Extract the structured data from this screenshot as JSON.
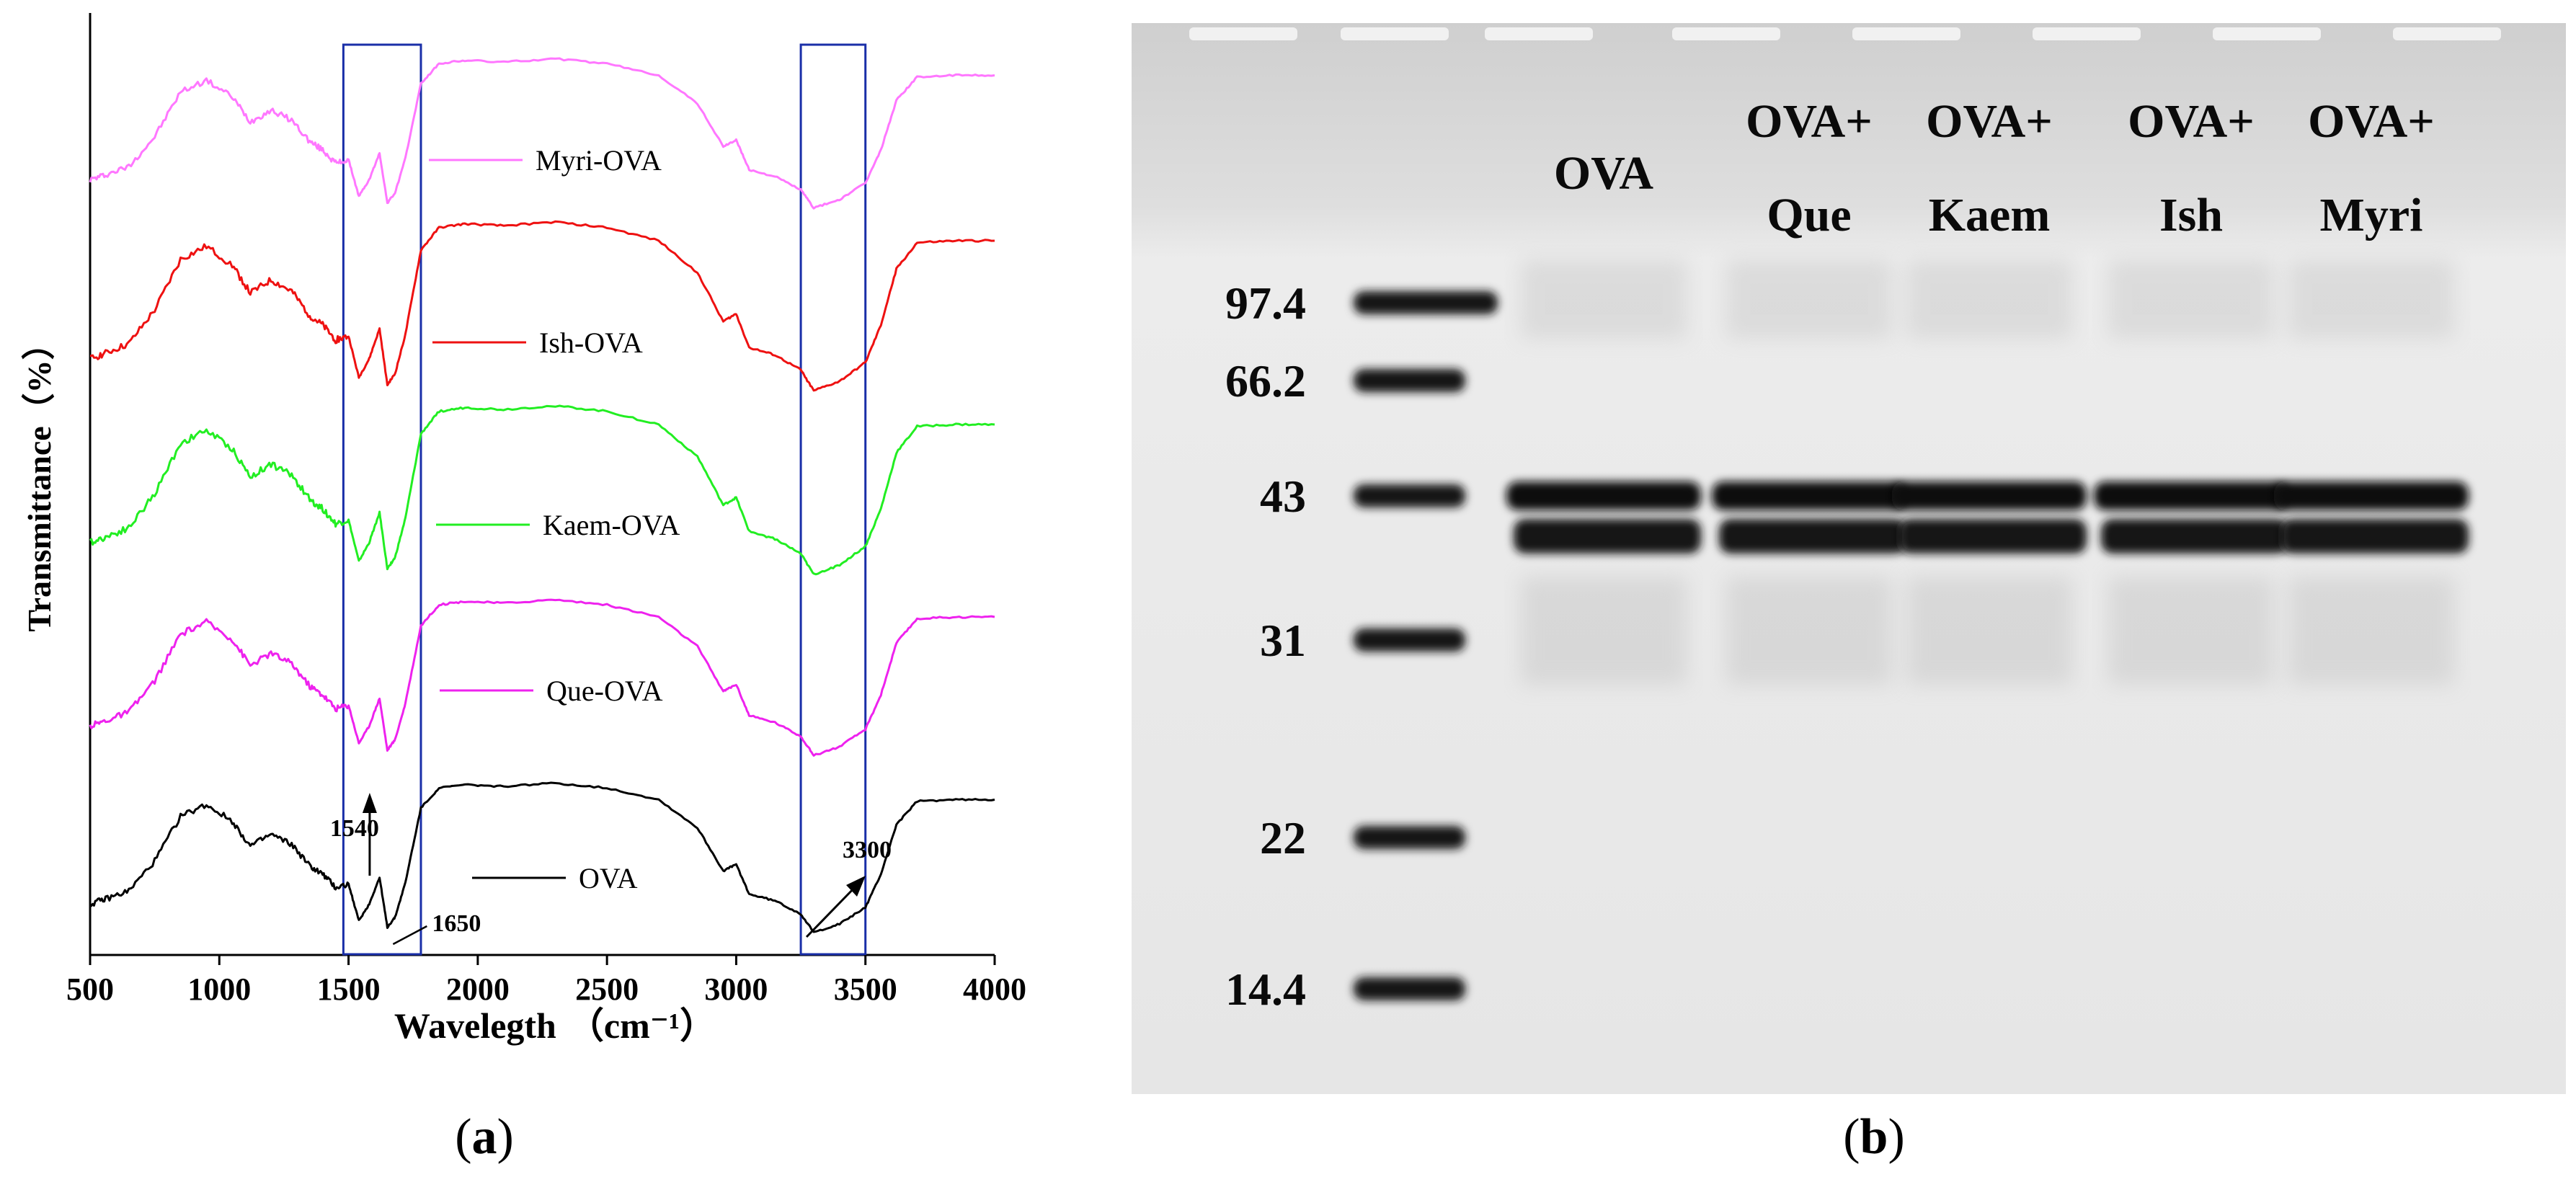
{
  "chart_data": [
    {
      "type": "line",
      "panel_label": "a",
      "xlabel": "Wavelegth",
      "xlabel_unit": "（cm⁻¹）",
      "ylabel": "Transmittance（%）",
      "xlim": [
        500,
        4000
      ],
      "xticks": [
        500,
        1000,
        1500,
        2000,
        2500,
        3000,
        3500,
        4000
      ],
      "highlight_boxes": [
        {
          "x": [
            1480,
            1780
          ]
        },
        {
          "x": [
            3250,
            3500
          ]
        }
      ],
      "annotations": [
        {
          "text": "1540",
          "x": 1540
        },
        {
          "text": "1650",
          "x": 1650
        },
        {
          "text": "3300",
          "x": 3300
        }
      ],
      "series": [
        {
          "name": "Myri-OVA",
          "color": "#ff77ff",
          "offset": 4
        },
        {
          "name": "Ish-OVA",
          "color": "#ee1111",
          "offset": 3
        },
        {
          "name": "Kaem-OVA",
          "color": "#22ee22",
          "offset": 2
        },
        {
          "name": "Que-OVA",
          "color": "#ee22ee",
          "offset": 1
        },
        {
          "name": "OVA",
          "color": "#000000",
          "offset": 0
        }
      ],
      "profile": {
        "x": [
          500,
          560,
          650,
          750,
          850,
          950,
          1050,
          1120,
          1200,
          1280,
          1350,
          1400,
          1450,
          1500,
          1540,
          1580,
          1620,
          1650,
          1680,
          1720,
          1780,
          1850,
          1950,
          2100,
          2300,
          2500,
          2700,
          2850,
          2950,
          3000,
          3050,
          3150,
          3250,
          3300,
          3400,
          3500,
          3560,
          3620,
          3700,
          3850,
          4000
        ],
        "y": [
          0.22,
          0.25,
          0.3,
          0.48,
          0.75,
          0.82,
          0.72,
          0.57,
          0.64,
          0.58,
          0.45,
          0.4,
          0.32,
          0.34,
          0.12,
          0.22,
          0.38,
          0.08,
          0.14,
          0.35,
          0.8,
          0.92,
          0.94,
          0.93,
          0.95,
          0.92,
          0.85,
          0.68,
          0.42,
          0.46,
          0.28,
          0.24,
          0.16,
          0.05,
          0.1,
          0.2,
          0.4,
          0.7,
          0.84,
          0.85,
          0.85
        ]
      }
    },
    {
      "type": "gel",
      "panel_label": "b",
      "markers": [
        "97.4",
        "66.2",
        "43",
        "31",
        "22",
        "14.4"
      ],
      "lanes": [
        {
          "line1": "OVA",
          "line2": ""
        },
        {
          "line1": "OVA+",
          "line2": "Que"
        },
        {
          "line1": "OVA+",
          "line2": "Kaem"
        },
        {
          "line1": "OVA+",
          "line2": "Ish"
        },
        {
          "line1": "OVA+",
          "line2": "Myri"
        }
      ]
    }
  ]
}
